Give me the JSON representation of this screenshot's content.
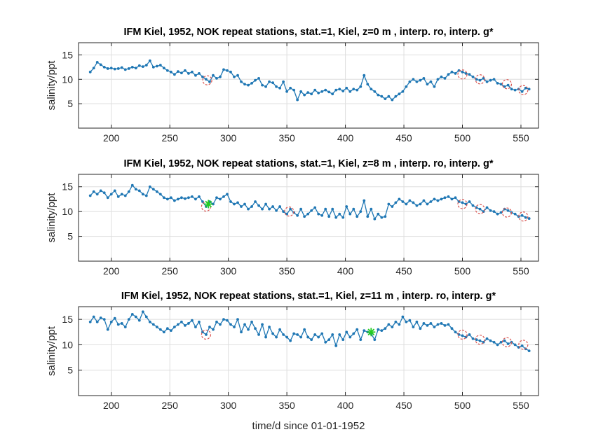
{
  "chart_data": [
    {
      "type": "line",
      "title": "IFM Kiel, 1952, NOK repeat stations, stat.=1, Kiel, z=0 m , interp. ro, interp. g*",
      "xlabel": "",
      "ylabel": "salinity/ppt",
      "xlim": [
        172,
        565
      ],
      "ylim": [
        0,
        17.5
      ],
      "xticks": [
        200,
        250,
        300,
        350,
        400,
        450,
        500,
        550
      ],
      "yticks": [
        5,
        10,
        15
      ],
      "grid": true,
      "series": [
        {
          "x": [
            182,
            185,
            188,
            191,
            194,
            197,
            200,
            203,
            206,
            209,
            212,
            215,
            218,
            221,
            224,
            227,
            230,
            233,
            236,
            239,
            242,
            245,
            248,
            251,
            254,
            257,
            260,
            263,
            266,
            269,
            272,
            275,
            278,
            281,
            284,
            287,
            290,
            293,
            296,
            299,
            302,
            305,
            308,
            311,
            314,
            317,
            320,
            323,
            326,
            329,
            332,
            335,
            338,
            341,
            344,
            347,
            350,
            353,
            356,
            359,
            362,
            365,
            368,
            371,
            374,
            377,
            380,
            383,
            386,
            389,
            392,
            395,
            398,
            401,
            404,
            407,
            410,
            413,
            416,
            419,
            422,
            425,
            428,
            431,
            434,
            437,
            440,
            443,
            446,
            449,
            452,
            455,
            458,
            461,
            464,
            467,
            470,
            473,
            476,
            479,
            482,
            485,
            488,
            491,
            494,
            497,
            500,
            503,
            506,
            509,
            512,
            515,
            518,
            521,
            524,
            527,
            530,
            533,
            536,
            539,
            542,
            545,
            548,
            551,
            554,
            557
          ],
          "y": [
            11.5,
            12.3,
            13.5,
            13.0,
            12.5,
            12.2,
            12.3,
            12.1,
            12.2,
            12.4,
            12.0,
            12.2,
            12.5,
            12.3,
            12.8,
            12.6,
            12.9,
            13.8,
            12.5,
            12.7,
            12.9,
            12.3,
            11.8,
            11.5,
            11.0,
            11.6,
            11.3,
            11.8,
            11.2,
            11.5,
            10.8,
            11.2,
            10.5,
            10.0,
            9.5,
            10.8,
            10.2,
            10.5,
            12.0,
            11.8,
            11.5,
            10.5,
            10.8,
            9.5,
            9.0,
            8.8,
            9.2,
            9.8,
            10.2,
            8.8,
            8.5,
            9.5,
            9.3,
            8.5,
            8.2,
            9.5,
            7.5,
            8.2,
            7.8,
            5.8,
            7.5,
            6.8,
            7.3,
            7.0,
            7.8,
            7.2,
            7.5,
            7.8,
            7.4,
            7.0,
            7.8,
            8.0,
            7.6,
            8.2,
            7.5,
            8.0,
            7.8,
            8.5,
            10.8,
            9.0,
            8.0,
            7.5,
            6.8,
            6.5,
            6.0,
            6.5,
            5.8,
            6.5,
            7.0,
            7.5,
            8.5,
            9.5,
            10.0,
            9.5,
            9.8,
            10.2,
            9.0,
            9.5,
            8.5,
            10.0,
            10.5,
            10.2,
            11.0,
            11.5,
            11.2,
            11.8,
            11.5,
            11.2,
            11.0,
            10.5,
            10.0,
            9.8,
            10.2,
            9.5,
            9.8,
            10.0,
            9.2,
            9.0,
            8.5,
            8.8,
            8.0,
            7.8,
            8.0,
            7.5,
            8.2,
            8.0
          ]
        }
      ],
      "markers": [
        {
          "type": "circle",
          "x": 282,
          "y": 9.8,
          "color": "#d9534f"
        },
        {
          "type": "circle",
          "x": 500,
          "y": 11.0,
          "color": "#d9534f"
        },
        {
          "type": "circle",
          "x": 515,
          "y": 10.0,
          "color": "#d9534f"
        },
        {
          "type": "circle",
          "x": 538,
          "y": 9.0,
          "color": "#d9534f"
        },
        {
          "type": "circle",
          "x": 552,
          "y": 7.8,
          "color": "#d9534f"
        }
      ]
    },
    {
      "type": "line",
      "title": "IFM Kiel, 1952, NOK repeat stations, stat.=1, Kiel, z=8 m , interp. ro, interp. g*",
      "xlabel": "",
      "ylabel": "salinity/ppt",
      "xlim": [
        172,
        565
      ],
      "ylim": [
        0,
        17.5
      ],
      "xticks": [
        200,
        250,
        300,
        350,
        400,
        450,
        500,
        550
      ],
      "yticks": [
        5,
        10,
        15
      ],
      "grid": true,
      "series": [
        {
          "x": [
            182,
            185,
            188,
            191,
            194,
            197,
            200,
            203,
            206,
            209,
            212,
            215,
            218,
            221,
            224,
            227,
            230,
            233,
            236,
            239,
            242,
            245,
            248,
            251,
            254,
            257,
            260,
            263,
            266,
            269,
            272,
            275,
            278,
            281,
            284,
            287,
            290,
            293,
            296,
            299,
            302,
            305,
            308,
            311,
            314,
            317,
            320,
            323,
            326,
            329,
            332,
            335,
            338,
            341,
            344,
            347,
            350,
            353,
            356,
            359,
            362,
            365,
            368,
            371,
            374,
            377,
            380,
            383,
            386,
            389,
            392,
            395,
            398,
            401,
            404,
            407,
            410,
            413,
            416,
            419,
            422,
            425,
            428,
            431,
            434,
            437,
            440,
            443,
            446,
            449,
            452,
            455,
            458,
            461,
            464,
            467,
            470,
            473,
            476,
            479,
            482,
            485,
            488,
            491,
            494,
            497,
            500,
            503,
            506,
            509,
            512,
            515,
            518,
            521,
            524,
            527,
            530,
            533,
            536,
            539,
            542,
            545,
            548,
            551,
            554,
            557
          ],
          "y": [
            13.2,
            14.0,
            13.5,
            14.2,
            13.8,
            12.8,
            13.5,
            14.2,
            13.0,
            13.5,
            13.2,
            14.0,
            15.3,
            14.5,
            14.2,
            13.5,
            13.2,
            15.0,
            14.5,
            14.0,
            13.5,
            12.8,
            12.5,
            12.8,
            12.2,
            12.5,
            12.8,
            12.6,
            12.8,
            13.0,
            12.5,
            13.0,
            12.0,
            11.0,
            12.0,
            11.5,
            12.8,
            12.5,
            13.0,
            13.5,
            12.0,
            11.5,
            11.8,
            11.0,
            11.5,
            10.5,
            11.0,
            12.0,
            11.2,
            10.5,
            11.5,
            10.5,
            11.0,
            10.2,
            11.0,
            10.0,
            9.5,
            10.5,
            9.8,
            9.2,
            10.5,
            9.0,
            9.5,
            10.2,
            10.8,
            9.5,
            9.2,
            10.5,
            9.0,
            10.5,
            8.8,
            9.5,
            8.8,
            11.0,
            9.5,
            10.5,
            9.0,
            10.0,
            12.2,
            9.0,
            10.5,
            8.5,
            9.5,
            8.8,
            9.0,
            11.5,
            11.0,
            11.8,
            12.5,
            12.0,
            11.5,
            12.2,
            11.8,
            11.2,
            11.5,
            12.2,
            11.5,
            12.0,
            12.5,
            12.2,
            12.5,
            12.8,
            13.0,
            12.5,
            12.8,
            12.0,
            11.8,
            11.5,
            12.0,
            11.2,
            10.8,
            10.5,
            10.0,
            10.8,
            10.2,
            10.0,
            9.5,
            9.8,
            10.5,
            10.2,
            9.8,
            9.5,
            9.0,
            9.2,
            8.8,
            8.6
          ]
        }
      ],
      "markers": [
        {
          "type": "circle",
          "x": 281,
          "y": 11.0,
          "color": "#d9534f"
        },
        {
          "type": "star",
          "x": 283,
          "y": 11.5,
          "color": "#22cc22"
        },
        {
          "type": "circle",
          "x": 352,
          "y": 10.0,
          "color": "#d9534f"
        },
        {
          "type": "circle",
          "x": 500,
          "y": 11.5,
          "color": "#d9534f"
        },
        {
          "type": "circle",
          "x": 515,
          "y": 10.5,
          "color": "#d9534f"
        },
        {
          "type": "circle",
          "x": 538,
          "y": 9.8,
          "color": "#d9534f"
        },
        {
          "type": "circle",
          "x": 552,
          "y": 9.0,
          "color": "#d9534f"
        }
      ]
    },
    {
      "type": "line",
      "title": "IFM Kiel, 1952, NOK repeat stations, stat.=1, Kiel, z=11 m , interp. ro, interp. g*",
      "xlabel": "time/d since 01-01-1952",
      "ylabel": "salinity/ppt",
      "xlim": [
        172,
        565
      ],
      "ylim": [
        0,
        17.5
      ],
      "xticks": [
        200,
        250,
        300,
        350,
        400,
        450,
        500,
        550
      ],
      "yticks": [
        5,
        10,
        15
      ],
      "grid": true,
      "series": [
        {
          "x": [
            182,
            185,
            188,
            191,
            194,
            197,
            200,
            203,
            206,
            209,
            212,
            215,
            218,
            221,
            224,
            227,
            230,
            233,
            236,
            239,
            242,
            245,
            248,
            251,
            254,
            257,
            260,
            263,
            266,
            269,
            272,
            275,
            278,
            281,
            284,
            287,
            290,
            293,
            296,
            299,
            302,
            305,
            308,
            311,
            314,
            317,
            320,
            323,
            326,
            329,
            332,
            335,
            338,
            341,
            344,
            347,
            350,
            353,
            356,
            359,
            362,
            365,
            368,
            371,
            374,
            377,
            380,
            383,
            386,
            389,
            392,
            395,
            398,
            401,
            404,
            407,
            410,
            413,
            416,
            419,
            422,
            425,
            428,
            431,
            434,
            437,
            440,
            443,
            446,
            449,
            452,
            455,
            458,
            461,
            464,
            467,
            470,
            473,
            476,
            479,
            482,
            485,
            488,
            491,
            494,
            497,
            500,
            503,
            506,
            509,
            512,
            515,
            518,
            521,
            524,
            527,
            530,
            533,
            536,
            539,
            542,
            545,
            548,
            551,
            554,
            557
          ],
          "y": [
            14.5,
            15.5,
            14.5,
            15.3,
            15.0,
            13.0,
            14.5,
            15.2,
            14.0,
            14.2,
            13.5,
            15.0,
            16.0,
            15.5,
            14.8,
            16.5,
            15.5,
            14.5,
            14.0,
            13.5,
            13.0,
            12.5,
            13.2,
            12.8,
            13.5,
            14.0,
            14.5,
            13.8,
            14.2,
            14.8,
            13.5,
            14.5,
            12.5,
            12.0,
            13.5,
            13.0,
            14.5,
            14.0,
            15.0,
            14.8,
            14.0,
            13.5,
            15.0,
            12.5,
            14.0,
            13.0,
            14.5,
            13.2,
            12.0,
            14.0,
            11.5,
            13.5,
            12.2,
            11.5,
            13.0,
            12.0,
            11.5,
            10.8,
            12.2,
            12.0,
            11.5,
            13.0,
            11.5,
            11.0,
            12.0,
            11.5,
            12.2,
            10.5,
            11.0,
            12.0,
            9.8,
            12.0,
            11.0,
            12.5,
            11.5,
            12.2,
            13.0,
            11.0,
            12.8,
            12.5,
            12.2,
            11.0,
            13.0,
            12.8,
            13.2,
            14.0,
            13.5,
            14.5,
            14.0,
            15.5,
            14.5,
            14.8,
            13.5,
            14.5,
            13.2,
            14.2,
            13.8,
            14.2,
            13.5,
            14.0,
            14.2,
            13.8,
            14.0,
            13.2,
            12.5,
            12.0,
            11.8,
            11.5,
            12.0,
            11.2,
            11.0,
            10.8,
            10.5,
            11.2,
            10.8,
            10.5,
            10.0,
            10.5,
            10.8,
            10.2,
            10.5,
            10.0,
            9.5,
            9.8,
            9.2,
            8.8
          ]
        }
      ],
      "markers": [
        {
          "type": "circle",
          "x": 281,
          "y": 12.0,
          "color": "#d9534f"
        },
        {
          "type": "star",
          "x": 422,
          "y": 12.5,
          "color": "#22cc22"
        },
        {
          "type": "circle",
          "x": 500,
          "y": 12.0,
          "color": "#d9534f"
        },
        {
          "type": "circle",
          "x": 515,
          "y": 11.0,
          "color": "#d9534f"
        },
        {
          "type": "circle",
          "x": 538,
          "y": 10.5,
          "color": "#d9534f"
        },
        {
          "type": "circle",
          "x": 552,
          "y": 10.0,
          "color": "#d9534f"
        }
      ]
    }
  ],
  "colors": {
    "line": "#1f77b4",
    "marker_circle": "#d9534f",
    "marker_star": "#22cc22",
    "grid": "#dedede",
    "axis": "#262626"
  }
}
